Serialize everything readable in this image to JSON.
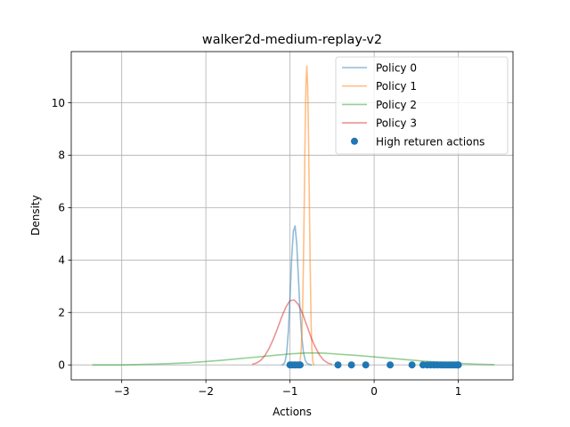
{
  "chart_data": {
    "type": "line",
    "title": "walker2d-medium-replay-v2",
    "xlabel": "Actions",
    "ylabel": "Density",
    "xlim": [
      -3.6,
      1.65
    ],
    "ylim": [
      -0.57,
      11.95
    ],
    "xticks": [
      -3,
      -2,
      -1,
      0,
      1
    ],
    "xtick_labels": [
      "−3",
      "−2",
      "−1",
      "0",
      "1"
    ],
    "yticks": [
      0,
      2,
      4,
      6,
      8,
      10
    ],
    "ytick_labels": [
      "0",
      "2",
      "4",
      "6",
      "8",
      "10"
    ],
    "grid": true,
    "legend_position": "top-right",
    "series": [
      {
        "name": "Policy 0",
        "color": "#1f77b4",
        "alpha": 0.5,
        "x": [
          -1.1,
          -1.08,
          -1.06,
          -1.04,
          -1.02,
          -1.0,
          -0.98,
          -0.96,
          -0.94,
          -0.92,
          -0.9,
          -0.88,
          -0.86,
          -0.84,
          -0.82,
          -0.8,
          -0.78,
          -0.76,
          -0.74
        ],
        "y": [
          0.0,
          0.02,
          0.11,
          0.45,
          1.26,
          2.6,
          4.1,
          5.1,
          5.3,
          4.6,
          3.3,
          2.0,
          1.05,
          0.48,
          0.18,
          0.07,
          0.03,
          0.01,
          0.0
        ]
      },
      {
        "name": "Policy 1",
        "color": "#ff7f0e",
        "alpha": 0.5,
        "x": [
          -0.93,
          -0.92,
          -0.91,
          -0.9,
          -0.89,
          -0.88,
          -0.87,
          -0.86,
          -0.85,
          -0.84,
          -0.83,
          -0.82,
          -0.81,
          -0.8,
          -0.79,
          -0.78,
          -0.77,
          -0.76,
          -0.75,
          -0.74,
          -0.73,
          -0.72,
          -0.71
        ],
        "y": [
          0.0,
          0.0,
          0.01,
          0.02,
          0.06,
          0.18,
          0.45,
          1.05,
          2.2,
          4.0,
          6.4,
          8.9,
          10.8,
          11.4,
          10.6,
          8.7,
          6.2,
          3.7,
          1.7,
          0.6,
          0.15,
          0.03,
          0.0
        ]
      },
      {
        "name": "Policy 2",
        "color": "#2ca02c",
        "alpha": 0.5,
        "x": [
          -3.35,
          -3.0,
          -2.6,
          -2.2,
          -1.8,
          -1.4,
          -1.0,
          -0.8,
          -0.6,
          -0.2,
          0.2,
          0.6,
          1.0,
          1.2,
          1.43
        ],
        "y": [
          0.0,
          0.0,
          0.03,
          0.08,
          0.18,
          0.3,
          0.42,
          0.46,
          0.45,
          0.36,
          0.25,
          0.14,
          0.06,
          0.03,
          0.01
        ]
      },
      {
        "name": "Policy 3",
        "color": "#d62728",
        "alpha": 0.5,
        "x": [
          -1.45,
          -1.4,
          -1.35,
          -1.3,
          -1.25,
          -1.2,
          -1.15,
          -1.1,
          -1.05,
          -1.0,
          -0.95,
          -0.9,
          -0.85,
          -0.8,
          -0.75,
          -0.7,
          -0.65,
          -0.6,
          -0.55,
          -0.5
        ],
        "y": [
          0.02,
          0.07,
          0.17,
          0.35,
          0.62,
          0.97,
          1.38,
          1.82,
          2.2,
          2.45,
          2.48,
          2.3,
          1.95,
          1.5,
          1.05,
          0.68,
          0.38,
          0.18,
          0.07,
          0.02
        ]
      }
    ],
    "scatter": {
      "name": "High returen actions",
      "color": "#1f77b4",
      "x": [
        -1.0,
        -0.98,
        -0.95,
        -0.93,
        -0.9,
        -0.88,
        -0.43,
        -0.27,
        -0.1,
        0.19,
        0.45,
        0.58,
        0.63,
        0.67,
        0.71,
        0.75,
        0.79,
        0.82,
        0.85,
        0.88,
        0.91,
        0.94,
        0.97,
        0.99,
        1.0
      ],
      "y": [
        0,
        0,
        0,
        0,
        0,
        0,
        0,
        0,
        0,
        0,
        0,
        0,
        0,
        0,
        0,
        0,
        0,
        0,
        0,
        0,
        0,
        0,
        0,
        0,
        0
      ]
    }
  }
}
